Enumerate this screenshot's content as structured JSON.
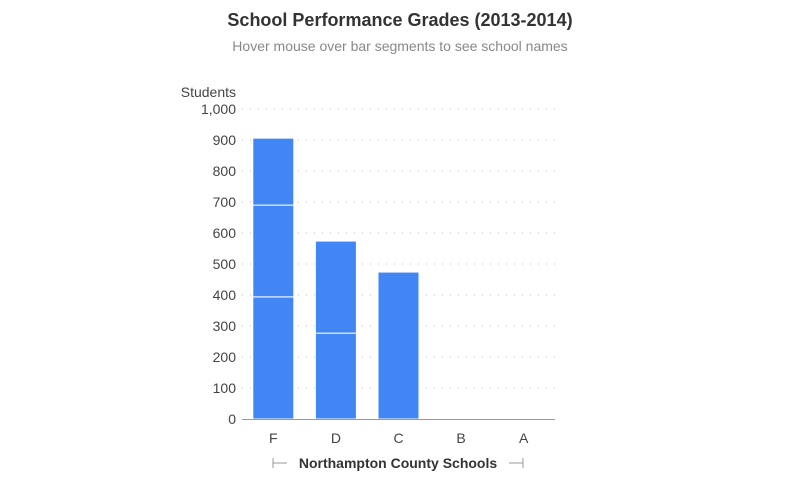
{
  "chart_data": {
    "type": "bar",
    "stacked": true,
    "title": "School Performance Grades (2013-2014)",
    "subtitle": "Hover mouse over bar segments to see school names",
    "xlabel": "Northampton County Schools",
    "ylabel": "Students",
    "ylim": [
      0,
      1000
    ],
    "yticks": [
      0,
      100,
      200,
      300,
      400,
      500,
      600,
      700,
      800,
      900,
      1000
    ],
    "ytick_labels": [
      "0",
      "100",
      "200",
      "300",
      "400",
      "500",
      "600",
      "700",
      "800",
      "900",
      "1,000"
    ],
    "categories": [
      "F",
      "D",
      "C",
      "B",
      "A"
    ],
    "segments": [
      [
        394,
        296,
        216
      ],
      [
        277,
        297
      ],
      [
        474
      ],
      [],
      []
    ],
    "grid": "dotted horizontal",
    "bar_color": "#4285f4"
  }
}
